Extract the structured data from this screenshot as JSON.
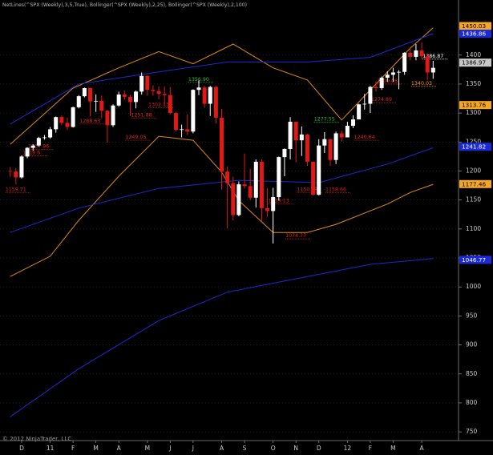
{
  "chart_data": {
    "type": "candlestick",
    "title": "NetLines(^SPX (Weekly),3,5,True), Bollinger(^SPX (Weekly),2,25), Bollinger(^SPX (Weekly),2,100)",
    "copyright": "© 2012 NinjaTrader, LLC",
    "categories": [
      null,
      null,
      "D",
      null,
      null,
      null,
      null,
      "11",
      null,
      null,
      null,
      "F",
      null,
      null,
      null,
      "M",
      null,
      null,
      null,
      "A",
      null,
      null,
      null,
      null,
      "M",
      null,
      null,
      null,
      "J",
      null,
      null,
      null,
      "J",
      null,
      null,
      null,
      null,
      "A",
      null,
      null,
      null,
      "S",
      null,
      null,
      null,
      null,
      "O",
      null,
      null,
      null,
      "N",
      null,
      null,
      null,
      "D",
      null,
      null,
      null,
      null,
      "12",
      null,
      null,
      null,
      "F",
      null,
      null,
      null,
      "M",
      null,
      null,
      null,
      null,
      "A",
      null,
      null
    ],
    "open": [
      1200,
      1199,
      1189,
      1225,
      1240,
      1244,
      1257,
      1258,
      1272,
      1293,
      1283,
      1276,
      1310,
      1329,
      1343,
      1320,
      1321,
      1304,
      1279,
      1313,
      1332,
      1328,
      1319,
      1337,
      1364,
      1340,
      1338,
      1333,
      1331,
      1300,
      1271,
      1272,
      1268,
      1340,
      1344,
      1316,
      1345,
      1292,
      1199,
      1179,
      1124,
      1177,
      1174,
      1154,
      1216,
      1136,
      1131,
      1155,
      1224,
      1238,
      1285,
      1253,
      1263,
      1216,
      1159,
      1244,
      1255,
      1219,
      1265,
      1258,
      1278,
      1289,
      1315,
      1316,
      1345,
      1343,
      1361,
      1366,
      1370,
      1371,
      1404,
      1397,
      1408,
      1398,
      1370
    ],
    "high": [
      1207,
      1205,
      1227,
      1241,
      1246,
      1259,
      1262,
      1276,
      1294,
      1296,
      1292,
      1311,
      1331,
      1344,
      1344,
      1332,
      1330,
      1305,
      1315,
      1337,
      1339,
      1331,
      1339,
      1370,
      1365,
      1348,
      1346,
      1346,
      1345,
      1302,
      1280,
      1298,
      1341,
      1356,
      1347,
      1347,
      1347,
      1307,
      1208,
      1190,
      1182,
      1230,
      1204,
      1220,
      1220,
      1170,
      1171,
      1225,
      1239,
      1293,
      1285,
      1277,
      1264,
      1216,
      1255,
      1267,
      1255,
      1268,
      1270,
      1285,
      1296,
      1316,
      1333,
      1347,
      1354,
      1363,
      1372,
      1378,
      1374,
      1405,
      1414,
      1419,
      1422,
      1401,
      1390
    ],
    "low": [
      1190,
      1177,
      1187,
      1222,
      1235,
      1242,
      1254,
      1256,
      1266,
      1279,
      1271,
      1275,
      1308,
      1327,
      1294,
      1302,
      1291,
      1249,
      1276,
      1311,
      1323,
      1295,
      1308,
      1332,
      1330,
      1330,
      1324,
      1312,
      1298,
      1268,
      1258,
      1262,
      1265,
      1331,
      1309,
      1295,
      1282,
      1168,
      1101,
      1115,
      1122,
      1170,
      1150,
      1137,
      1114,
      1121,
      1075,
      1149,
      1191,
      1220,
      1215,
      1226,
      1209,
      1158,
      1158,
      1231,
      1209,
      1212,
      1251,
      1258,
      1274,
      1290,
      1306,
      1300,
      1337,
      1340,
      1354,
      1354,
      1341,
      1366,
      1391,
      1391,
      1392,
      1357,
      1359
    ],
    "close": [
      1199,
      1189,
      1225,
      1240,
      1244,
      1257,
      1258,
      1272,
      1293,
      1283,
      1276,
      1310,
      1329,
      1343,
      1320,
      1321,
      1304,
      1279,
      1313,
      1332,
      1328,
      1319,
      1337,
      1364,
      1340,
      1338,
      1333,
      1331,
      1300,
      1271,
      1272,
      1268,
      1340,
      1344,
      1316,
      1345,
      1292,
      1199,
      1179,
      1124,
      1177,
      1174,
      1154,
      1216,
      1136,
      1131,
      1155,
      1224,
      1238,
      1285,
      1253,
      1263,
      1216,
      1159,
      1244,
      1255,
      1219,
      1265,
      1258,
      1278,
      1289,
      1315,
      1316,
      1345,
      1343,
      1361,
      1366,
      1370,
      1371,
      1404,
      1397,
      1408,
      1398,
      1370,
      1378
    ],
    "up_color": "#ffffff",
    "down_color": "#e01818",
    "bands": [
      {
        "color": "#e08a10",
        "x": [
          0,
          11,
          19,
          26,
          32,
          39,
          46,
          52,
          58,
          64,
          70,
          74
        ],
        "values": [
          1246,
          1343,
          1378,
          1406,
          1385,
          1419,
          1378,
          1357,
          1288,
          1350,
          1412,
          1447
        ]
      },
      {
        "color": "#e08a10",
        "x": [
          0,
          7,
          12,
          19,
          26,
          32,
          37,
          40,
          46,
          52,
          57,
          66,
          70,
          74
        ],
        "values": [
          1018,
          1053,
          1115,
          1191,
          1260,
          1253,
          1198,
          1149,
          1094,
          1094,
          1108,
          1143,
          1163,
          1177
        ]
      },
      {
        "color": "#1c2ad0",
        "x": [
          0,
          12,
          26,
          38,
          52,
          63,
          74
        ],
        "values": [
          1281,
          1350,
          1371,
          1388,
          1388,
          1396,
          1437
        ]
      },
      {
        "color": "#1c2ad0",
        "x": [
          0,
          12,
          26,
          40,
          54,
          66,
          74
        ],
        "values": [
          1094,
          1136,
          1170,
          1184,
          1180,
          1212,
          1240
        ]
      },
      {
        "color": "#1c2ad0",
        "x": [
          0,
          12,
          26,
          38,
          52,
          63,
          74
        ],
        "values": [
          776,
          859,
          942,
          991,
          1018,
          1039,
          1049
        ]
      }
    ],
    "annotations": [
      {
        "text": "1159.71",
        "week": 0,
        "level": 1163,
        "color": "#e02020"
      },
      {
        "text": "1319.6",
        "week": 3,
        "level": 1226,
        "color": "#e02020"
      },
      {
        "text": "1237.96",
        "week": 4,
        "level": 1237,
        "color": "#e02020"
      },
      {
        "text": "1288.63",
        "week": 13,
        "level": 1281,
        "color": "#e02020"
      },
      {
        "text": "1249.05",
        "week": 21,
        "level": 1253,
        "color": "#e02020"
      },
      {
        "text": "1251.88",
        "week": 22,
        "level": 1291,
        "color": "#e02020"
      },
      {
        "text": "1302.13",
        "week": 25,
        "level": 1309,
        "color": "#e02020"
      },
      {
        "text": "1356.90",
        "week": 32,
        "level": 1353,
        "color": "#30c030"
      },
      {
        "text": "1139.13",
        "week": 46,
        "level": 1143,
        "color": "#e02020"
      },
      {
        "text": "1074.77",
        "week": 49,
        "level": 1083,
        "color": "#e02020"
      },
      {
        "text": "1150.98",
        "week": 51,
        "level": 1163,
        "color": "#e02020"
      },
      {
        "text": "1277.55",
        "week": 54,
        "level": 1284,
        "color": "#30c030"
      },
      {
        "text": "1158.66",
        "week": 56,
        "level": 1163,
        "color": "#e02020"
      },
      {
        "text": "1240.64",
        "week": 61,
        "level": 1253,
        "color": "#e02020"
      },
      {
        "text": "1274.89",
        "week": 64,
        "level": 1318,
        "color": "#e02020"
      },
      {
        "text": "1309.08",
        "week": 65,
        "level": 1350,
        "color": "#e02020"
      },
      {
        "text": "1340.03",
        "week": 71,
        "level": 1346,
        "color": "#ff9900"
      },
      {
        "text": "1386.87",
        "week": 73,
        "level": 1393,
        "color": "#ffffff"
      }
    ],
    "price_markers": [
      {
        "value": 1450.03,
        "color": "#f5a623",
        "text_color": "#000000"
      },
      {
        "value": 1436.86,
        "color": "#1a2ad8",
        "text_color": "#ffffff"
      },
      {
        "value": 1386.97,
        "color": "#c8c8c8",
        "text_color": "#000000"
      },
      {
        "value": 1313.76,
        "color": "#f5a623",
        "text_color": "#000000"
      },
      {
        "value": 1241.82,
        "color": "#1a2ad8",
        "text_color": "#ffffff"
      },
      {
        "value": 1177.46,
        "color": "#f5a623",
        "text_color": "#000000"
      },
      {
        "value": 1046.77,
        "color": "#1a2ad8",
        "text_color": "#ffffff"
      }
    ],
    "ylim": [
      735,
      1495
    ],
    "yticks": [
      750,
      800,
      850,
      900,
      950,
      1000,
      1050,
      1100,
      1150,
      1200,
      1250,
      1300,
      1350,
      1400
    ],
    "grid": true
  }
}
